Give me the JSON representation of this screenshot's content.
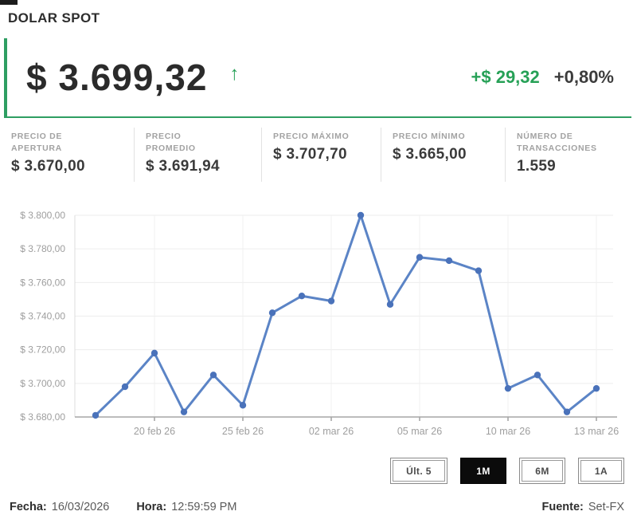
{
  "header": {
    "title": "DOLAR SPOT"
  },
  "quote": {
    "price": "$ 3.699,32",
    "direction_icon": "↑",
    "change_abs": "+$ 29,32",
    "change_pct": "+0,80%",
    "accent_green": "#2e9e62"
  },
  "stats": [
    {
      "label": "PRECIO DE\nAPERTURA",
      "value": "$ 3.670,00"
    },
    {
      "label": "PRECIO\nPROMEDIO",
      "value": "$ 3.691,94"
    },
    {
      "label": "PRECIO MÁXIMO",
      "value": "$ 3.707,70"
    },
    {
      "label": "PRECIO MÍNIMO",
      "value": "$ 3.665,00"
    },
    {
      "label": "NÚMERO DE\nTRANSACCIONES",
      "value": "1.559"
    }
  ],
  "chart_data": {
    "type": "line",
    "title": "",
    "xlabel": "",
    "ylabel": "",
    "ylim": [
      3680,
      3800
    ],
    "grid": true,
    "legend": "none",
    "values": [
      3681,
      3698,
      3718,
      3683,
      3705,
      3687,
      3742,
      3752,
      3749,
      3800,
      3747,
      3775,
      3773,
      3767,
      3697,
      3705,
      3683,
      3697
    ],
    "y_ticks": [
      {
        "value": 3800,
        "label": "$ 3.800,00"
      },
      {
        "value": 3780,
        "label": "$ 3.780,00"
      },
      {
        "value": 3760,
        "label": "$ 3.760,00"
      },
      {
        "value": 3740,
        "label": "$ 3.740,00"
      },
      {
        "value": 3720,
        "label": "$ 3.720,00"
      },
      {
        "value": 3700,
        "label": "$ 3.700,00"
      },
      {
        "value": 3680,
        "label": "$ 3.680,00"
      }
    ],
    "x_ticks": [
      {
        "index": 2,
        "label": "20 feb 26"
      },
      {
        "index": 5,
        "label": "25 feb 26"
      },
      {
        "index": 8,
        "label": "02 mar 26"
      },
      {
        "index": 11,
        "label": "05 mar 26"
      },
      {
        "index": 14,
        "label": "10 mar 26"
      },
      {
        "index": 17,
        "label": "13 mar 26"
      }
    ],
    "line_color": "#5b84c6",
    "marker_color": "#4a72ba"
  },
  "range_buttons": [
    {
      "label": "Últ. 5",
      "selected": false
    },
    {
      "label": "1M",
      "selected": true
    },
    {
      "label": "6M",
      "selected": false
    },
    {
      "label": "1A",
      "selected": false
    }
  ],
  "footer": {
    "date_label": "Fecha:",
    "date_value": "16/03/2026",
    "time_label": "Hora:",
    "time_value": "12:59:59 PM",
    "source_label": "Fuente:",
    "source_value": "Set-FX"
  }
}
